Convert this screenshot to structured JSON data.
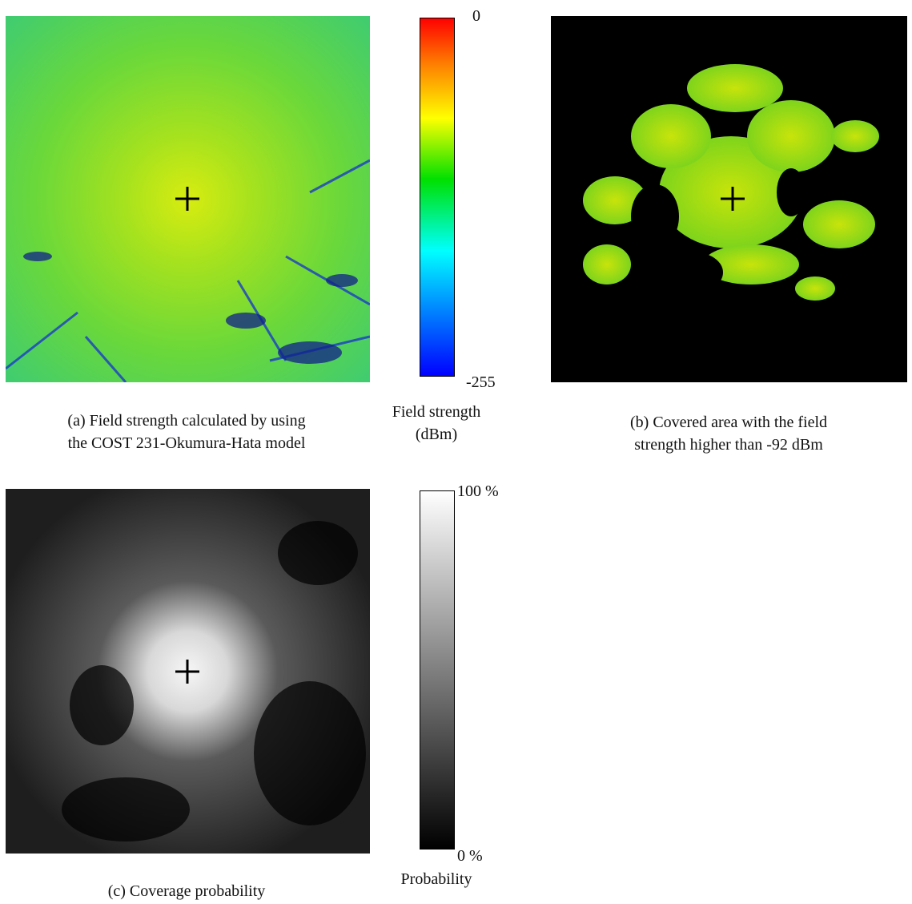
{
  "panels": [
    {
      "caption": [
        "(a)  Field strength calculated by using",
        "the COST 231-Okumura-Hata model"
      ]
    },
    {
      "caption": [
        "(b)  Covered area with the field",
        "strength higher than -92 dBm"
      ]
    },
    {
      "caption": [
        "(c)  Coverage probability"
      ]
    }
  ],
  "colorbars": [
    {
      "top": "0",
      "bottom": "-255",
      "title": [
        "Field strength",
        "(dBm)"
      ]
    },
    {
      "top": "100 %",
      "bottom": "0 %",
      "title": [
        "Probability"
      ]
    }
  ]
}
